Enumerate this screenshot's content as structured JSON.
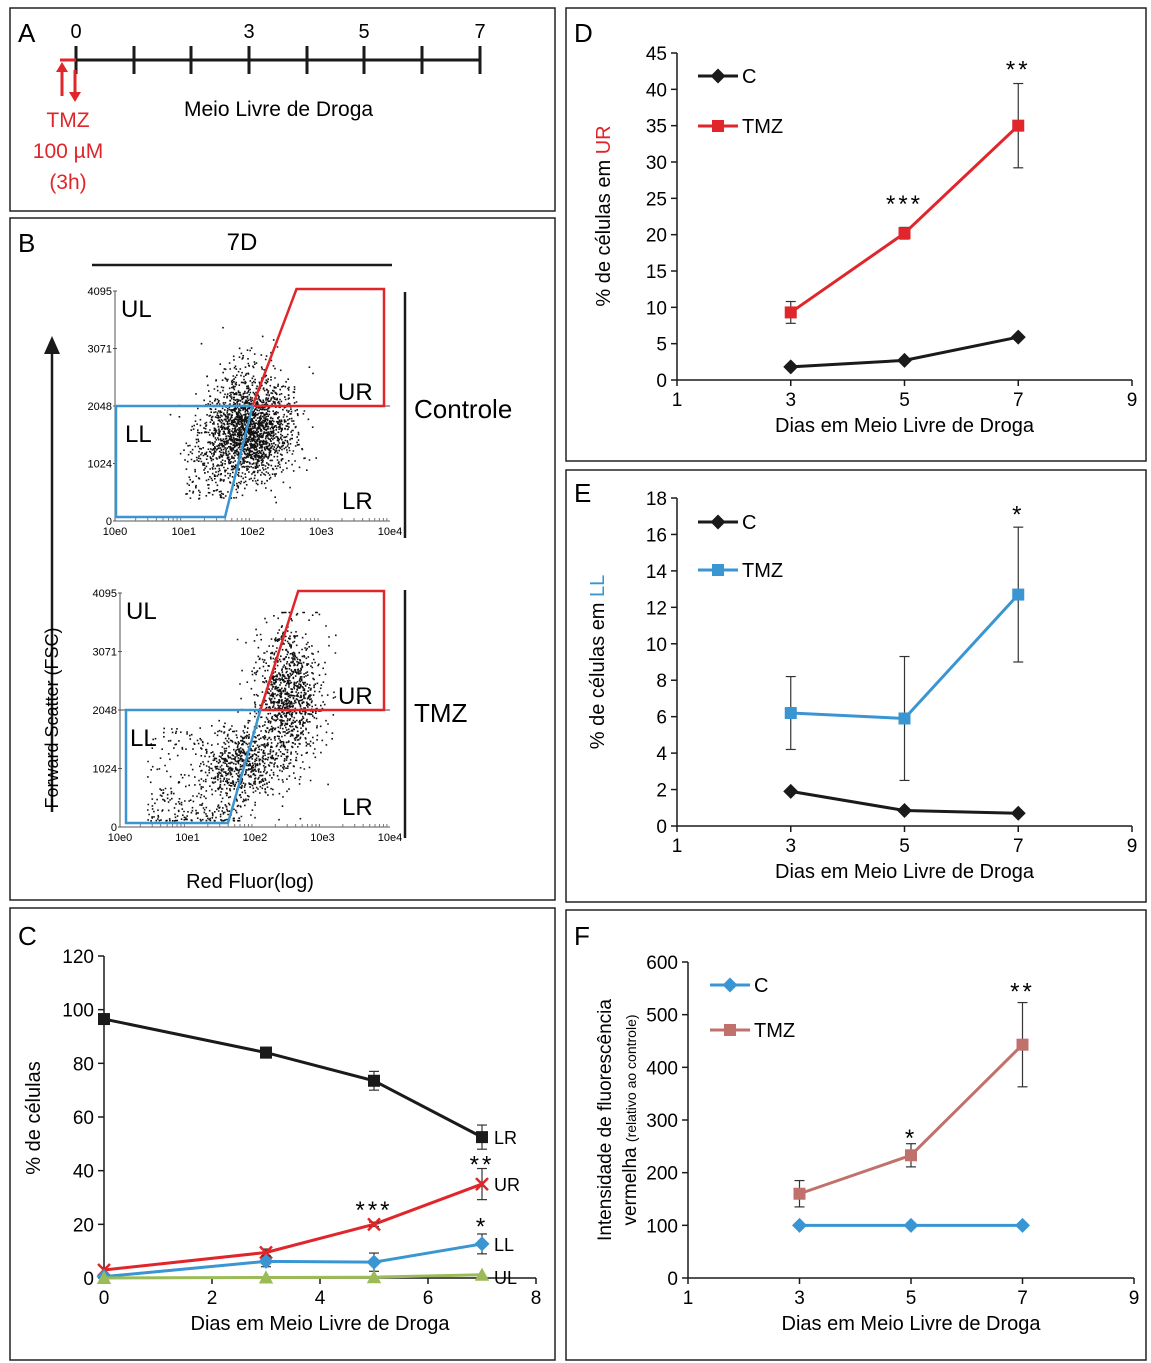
{
  "panel_labels": {
    "a": "A",
    "b": "B",
    "c": "C",
    "d": "D",
    "e": "E",
    "f": "F"
  },
  "timeline": {
    "ticks": [
      "0",
      "3",
      "5",
      "7"
    ],
    "label": "Meio Livre de Droga",
    "drug": "TMZ",
    "dose": "100 µM",
    "duration": "(3h)",
    "color": "#e0262b"
  },
  "flow": {
    "title": "7D",
    "y_axis_label": "Forward Scatter (FSC)",
    "x_axis_label": "Red Fluor(log)",
    "y_ticks": [
      "4095",
      "3071",
      "2048",
      "1024",
      "0"
    ],
    "x_ticks": [
      "10e0",
      "10e1",
      "10e2",
      "10e3",
      "10e4"
    ],
    "quadrants": {
      "ul": "UL",
      "ur": "UR",
      "ll": "LL",
      "lr": "LR"
    },
    "conditions": [
      "Controle",
      "TMZ"
    ],
    "colors": {
      "ur_gate": "#e0262b",
      "ll_gate": "#3a96d2"
    }
  },
  "chart_data": [
    {
      "panel": "C",
      "type": "line",
      "xlabel": "Dias em Meio Livre de Droga",
      "ylabel": "% de células",
      "xlim": [
        0,
        8
      ],
      "ylim": [
        0,
        120
      ],
      "xticks": [
        "0",
        "2",
        "4",
        "6",
        "8"
      ],
      "yticks": [
        "0",
        "20",
        "40",
        "60",
        "80",
        "100",
        "120"
      ],
      "x": [
        0,
        3,
        5,
        7
      ],
      "series": [
        {
          "name": "LR",
          "values": [
            96.5,
            84,
            73.5,
            52.5
          ],
          "err": [
            1.5,
            2,
            3.5,
            4.5
          ],
          "color": "#1a1a1a",
          "marker": "square"
        },
        {
          "name": "UR",
          "values": [
            3,
            9.5,
            20,
            35
          ],
          "err": [
            0,
            1.3,
            0.8,
            5.8
          ],
          "color": "#e0262b",
          "marker": "x"
        },
        {
          "name": "LL",
          "values": [
            0.5,
            6.2,
            5.9,
            12.7
          ],
          "err": [
            0,
            2,
            3.4,
            3.7
          ],
          "color": "#3a96d2",
          "marker": "diamond"
        },
        {
          "name": "UL",
          "values": [
            0,
            0.2,
            0.3,
            1.2
          ],
          "err": [
            0,
            0,
            0,
            0
          ],
          "color": "#9bbb59",
          "marker": "triangle"
        }
      ],
      "annotations": [
        {
          "x": 5,
          "y": 26,
          "text": "***"
        },
        {
          "x": 7,
          "y": 43,
          "text": "**"
        },
        {
          "x": 7,
          "y": 20,
          "text": "*"
        }
      ]
    },
    {
      "panel": "D",
      "type": "line",
      "xlabel": "Dias em Meio Livre de Droga",
      "ylabel_prefix": "% de células em ",
      "ylabel_highlight": "UR",
      "highlight_color": "#e0262b",
      "xlim": [
        1,
        9
      ],
      "ylim": [
        0,
        45
      ],
      "xticks": [
        "1",
        "3",
        "5",
        "7",
        "9"
      ],
      "yticks": [
        "0",
        "5",
        "10",
        "15",
        "20",
        "25",
        "30",
        "35",
        "40",
        "45"
      ],
      "x": [
        3,
        5,
        7
      ],
      "legend": "top-left",
      "series": [
        {
          "name": "C",
          "values": [
            1.8,
            2.7,
            5.9
          ],
          "err": [
            0,
            0,
            0
          ],
          "color": "#1a1a1a",
          "marker": "diamond"
        },
        {
          "name": "TMZ",
          "values": [
            9.3,
            20.2,
            35
          ],
          "err": [
            1.5,
            0.8,
            5.8
          ],
          "color": "#e0262b",
          "marker": "square"
        }
      ],
      "annotations": [
        {
          "x": 5,
          "y": 24.5,
          "text": "***"
        },
        {
          "x": 7,
          "y": 43,
          "text": "**"
        }
      ]
    },
    {
      "panel": "E",
      "type": "line",
      "xlabel": "Dias em Meio Livre de Droga",
      "ylabel_prefix": "% de células em ",
      "ylabel_highlight": "LL",
      "highlight_color": "#3a96d2",
      "xlim": [
        1,
        9
      ],
      "ylim": [
        0,
        18
      ],
      "xticks": [
        "1",
        "3",
        "5",
        "7",
        "9"
      ],
      "yticks": [
        "0",
        "2",
        "4",
        "6",
        "8",
        "10",
        "12",
        "14",
        "16",
        "18"
      ],
      "x": [
        3,
        5,
        7
      ],
      "legend": "top-left",
      "series": [
        {
          "name": "C",
          "values": [
            1.9,
            0.85,
            0.7
          ],
          "err": [
            0,
            0,
            0
          ],
          "color": "#1a1a1a",
          "marker": "diamond"
        },
        {
          "name": "TMZ",
          "values": [
            6.2,
            5.9,
            12.7
          ],
          "err": [
            2,
            3.4,
            3.7
          ],
          "color": "#3a96d2",
          "marker": "square"
        }
      ],
      "annotations": [
        {
          "x": 7,
          "y": 17.2,
          "text": "*"
        }
      ]
    },
    {
      "panel": "F",
      "type": "line",
      "xlabel": "Dias em Meio Livre de Droga",
      "ylabel_line1": "Intensidade de fluorescência",
      "ylabel_line2": "vermelha",
      "ylabel_line2_small": "(relativo ao controle)",
      "xlim": [
        1,
        9
      ],
      "ylim": [
        0,
        600
      ],
      "xticks": [
        "1",
        "3",
        "5",
        "7",
        "9"
      ],
      "yticks": [
        "0",
        "100",
        "200",
        "300",
        "400",
        "500",
        "600"
      ],
      "x": [
        3,
        5,
        7
      ],
      "legend": "top-left",
      "series": [
        {
          "name": "C",
          "values": [
            100,
            100,
            100
          ],
          "err": [
            0,
            0,
            0
          ],
          "color": "#3a96d2",
          "marker": "diamond"
        },
        {
          "name": "TMZ",
          "values": [
            160,
            233,
            443
          ],
          "err": [
            25,
            22,
            80
          ],
          "color": "#c0716c",
          "marker": "square"
        }
      ],
      "annotations": [
        {
          "x": 5,
          "y": 270,
          "text": "*"
        },
        {
          "x": 7,
          "y": 548,
          "text": "**"
        }
      ]
    }
  ]
}
